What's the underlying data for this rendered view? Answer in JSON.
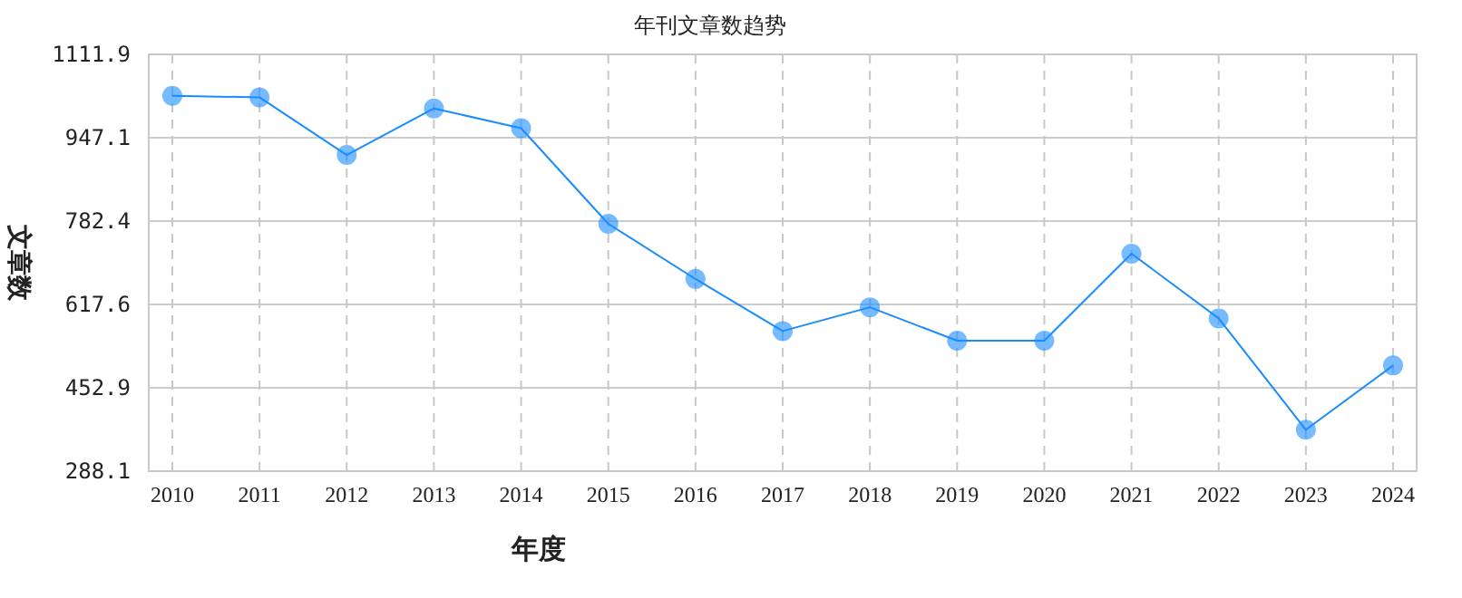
{
  "chart_data": {
    "type": "line",
    "title": "年刊文章数趋势",
    "xlabel": "年度",
    "ylabel": "文章数",
    "categories": [
      "2010",
      "2011",
      "2012",
      "2013",
      "2014",
      "2015",
      "2016",
      "2017",
      "2018",
      "2019",
      "2020",
      "2021",
      "2022",
      "2023",
      "2024"
    ],
    "series": [
      {
        "color": "#1a8cff",
        "values": [
          1030,
          1027,
          913,
          1005,
          966,
          777,
          668,
          565,
          612,
          546,
          546,
          718,
          590,
          370,
          497
        ]
      }
    ],
    "ylim": [
      288.1,
      1111.9
    ],
    "yticks": [
      288.1,
      452.9,
      617.6,
      782.4,
      947.1,
      1111.9
    ],
    "grid": true,
    "marker": "circle",
    "line_style": "solid"
  }
}
